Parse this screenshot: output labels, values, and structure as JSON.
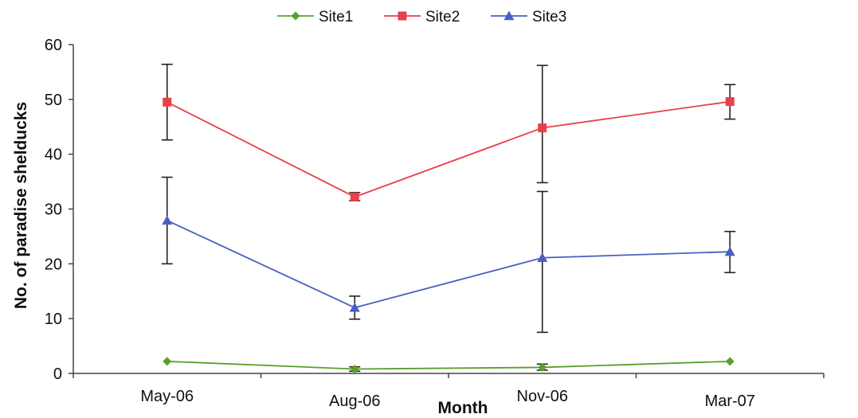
{
  "chart_data": {
    "type": "line",
    "title": "",
    "xlabel": "Month",
    "ylabel": "No. of paradise shelducks",
    "categories": [
      "May-06",
      "Aug-06",
      "Nov-06",
      "Mar-07"
    ],
    "ylim": [
      0,
      60
    ],
    "yticks": [
      0,
      10,
      20,
      30,
      40,
      50,
      60
    ],
    "grid": false,
    "legend_position": "top",
    "series": [
      {
        "name": "Site1",
        "color": "#5aa02c",
        "marker": "diamond",
        "values": [
          2.2,
          0.8,
          1.1,
          2.2
        ],
        "err_upper": [
          null,
          1.2,
          1.7,
          null
        ],
        "err_lower": [
          null,
          0.4,
          0.6,
          null
        ]
      },
      {
        "name": "Site2",
        "color": "#e8404a",
        "marker": "square",
        "values": [
          49.5,
          32.2,
          44.8,
          49.6
        ],
        "err_upper": [
          56.4,
          33.0,
          56.2,
          52.7
        ],
        "err_lower": [
          42.6,
          31.5,
          34.8,
          46.4
        ]
      },
      {
        "name": "Site3",
        "color": "#4a5fc1",
        "marker": "triangle",
        "values": [
          27.9,
          12.0,
          21.1,
          22.2
        ],
        "err_upper": [
          35.8,
          14.1,
          33.2,
          25.9
        ],
        "err_lower": [
          20.0,
          9.9,
          7.5,
          18.4
        ]
      }
    ]
  }
}
